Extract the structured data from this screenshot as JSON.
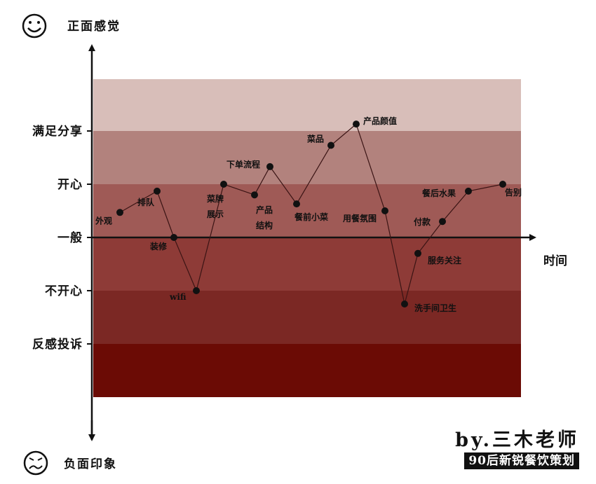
{
  "chart_data": {
    "type": "line",
    "y_axis_top_label": "正面感觉",
    "y_axis_bottom_label": "负面印象",
    "x_axis_label": "时间",
    "levels": [
      "满足分享",
      "开心",
      "一般",
      "不开心",
      "反感投诉"
    ],
    "band_colors": [
      "#d8beb9",
      "#b2827d",
      "#9f5a56",
      "#8e3b37",
      "#7b2824",
      "#6b0b05"
    ],
    "y_range": [
      -3,
      3
    ],
    "points": [
      {
        "label": "外观",
        "x": 1,
        "y": 0.47
      },
      {
        "label": "排队",
        "x": 2,
        "y": 0.87
      },
      {
        "label": "装修",
        "x": 3,
        "y": 0.0
      },
      {
        "label": "wifi",
        "x": 4,
        "y": -1.0
      },
      {
        "label": "菜牌展示",
        "x": 5,
        "y": 1.0
      },
      {
        "label": "产品结构",
        "x": 6,
        "y": 0.8
      },
      {
        "label": "下单流程",
        "x": 7,
        "y": 1.33
      },
      {
        "label": "餐前小菜",
        "x": 8,
        "y": 0.63
      },
      {
        "label": "菜品",
        "x": 9,
        "y": 1.73
      },
      {
        "label": "产品颜值",
        "x": 10,
        "y": 2.13
      },
      {
        "label": "用餐氛围",
        "x": 11,
        "y": 0.5
      },
      {
        "label": "洗手间卫生",
        "x": 12,
        "y": -1.25
      },
      {
        "label": "服务关注",
        "x": 13,
        "y": -0.3
      },
      {
        "label": "付款",
        "x": 14,
        "y": 0.3
      },
      {
        "label": "餐后水果",
        "x": 15,
        "y": 0.87
      },
      {
        "label": "告别",
        "x": 16,
        "y": 1.0
      }
    ]
  },
  "byline": "by.三木老师",
  "subline": "90后新锐餐饮策划",
  "icons": {
    "top": "smiley-face-icon",
    "bottom": "worried-face-icon"
  }
}
